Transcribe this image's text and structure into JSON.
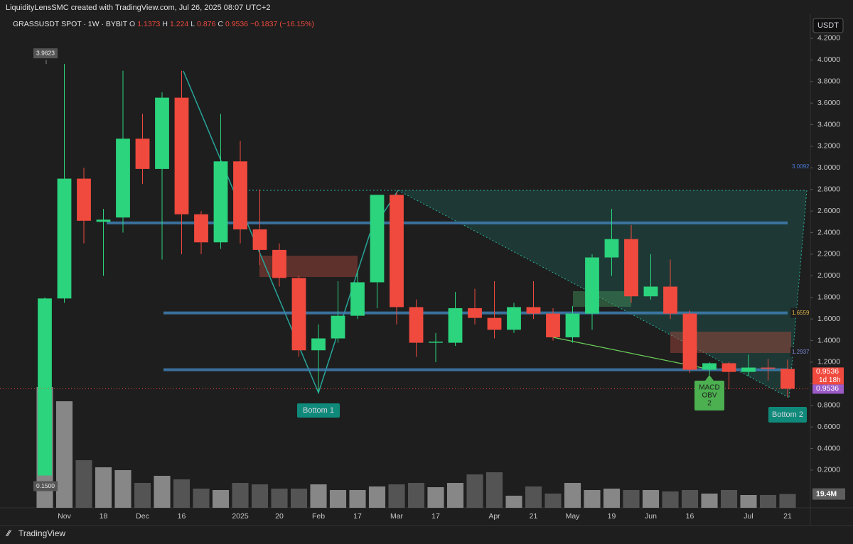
{
  "credit": "LiquidityLensSMC created with TradingView.com, Jul 26, 2025 08:07 UTC+2",
  "currency_button": "USDT",
  "footer_brand": "TradingView",
  "chart_data": {
    "type": "candlestick",
    "title": "GRASSUSDT SPOT · 1W · BYBIT",
    "header": {
      "o": "O",
      "h": "H",
      "l": "L",
      "c": "C",
      "change": "−0.1837 (−16.15%)"
    },
    "categories": [
      null,
      "Nov",
      null,
      "18",
      null,
      "Dec",
      null,
      "16",
      null,
      null,
      "2025",
      null,
      "20",
      null,
      "Feb",
      null,
      "17",
      null,
      "Mar",
      null,
      "17",
      null,
      null,
      "Apr",
      null,
      "21",
      null,
      "May",
      null,
      "19",
      null,
      "Jun",
      null,
      "16",
      null,
      null,
      "Jul",
      null,
      "21"
    ],
    "open": [
      0.15,
      1.79,
      2.9,
      2.5,
      2.54,
      3.27,
      2.99,
      3.65,
      2.57,
      2.31,
      3.06,
      2.43,
      2.24,
      1.98,
      1.31,
      1.42,
      1.63,
      1.94,
      2.75,
      1.71,
      1.38,
      1.38,
      1.7,
      1.61,
      1.5,
      1.71,
      1.65,
      1.43,
      1.65,
      2.17,
      2.34,
      1.81,
      1.9,
      1.65,
      1.13,
      1.19,
      1.11,
      1.15,
      1.1373
    ],
    "high": [
      1.8,
      3.9623,
      3.0,
      2.62,
      3.9,
      3.5,
      3.7,
      3.9,
      2.6,
      3.5,
      3.25,
      2.8,
      2.3,
      2.0,
      1.55,
      1.95,
      2.05,
      2.75,
      2.78,
      1.78,
      1.47,
      1.85,
      1.88,
      1.95,
      1.75,
      1.95,
      1.7,
      1.72,
      2.2,
      2.62,
      2.47,
      2.2,
      2.15,
      1.68,
      1.2,
      1.2,
      1.27,
      1.23,
      1.224
    ],
    "low": [
      0.15,
      1.75,
      2.3,
      2.0,
      2.4,
      2.85,
      2.15,
      2.2,
      2.2,
      2.25,
      2.3,
      2.1,
      1.9,
      1.25,
      0.92,
      1.38,
      1.6,
      1.7,
      1.55,
      1.25,
      1.2,
      1.35,
      1.55,
      1.42,
      1.47,
      1.6,
      1.4,
      1.38,
      1.5,
      2.0,
      1.75,
      1.78,
      1.6,
      1.1,
      1.07,
      0.95,
      1.07,
      1.03,
      0.876
    ],
    "close": [
      1.79,
      2.9,
      2.51,
      2.52,
      3.27,
      2.99,
      3.65,
      2.57,
      2.31,
      3.06,
      2.43,
      2.24,
      1.98,
      1.31,
      1.42,
      1.63,
      1.94,
      2.75,
      1.71,
      1.38,
      1.39,
      1.7,
      1.61,
      1.5,
      1.71,
      1.65,
      1.43,
      1.65,
      2.17,
      2.34,
      1.81,
      1.9,
      1.65,
      1.13,
      1.19,
      1.11,
      1.15,
      1.14,
      0.9536
    ],
    "up_color": "#2bd47d",
    "down_color": "#f04a3e",
    "volume": {
      "values": [
        170,
        150,
        67,
        57,
        53,
        35,
        45,
        40,
        27,
        25,
        35,
        33,
        27,
        27,
        33,
        25,
        25,
        30,
        33,
        35,
        29,
        35,
        47,
        50,
        17,
        30,
        20,
        35,
        25,
        27,
        25,
        25,
        23,
        25,
        20,
        25,
        18,
        18,
        19.4
      ],
      "label": "19.4M",
      "up_color": "#9a9a9a",
      "down_color": "#5e5e5e"
    },
    "ylim": [
      -0.149,
      4.259
    ],
    "yticks": [
      {
        "value": 0.2,
        "label": "0.2000"
      },
      {
        "value": 0.4,
        "label": "0.4000"
      },
      {
        "value": 0.6,
        "label": "0.6000"
      },
      {
        "value": 0.8,
        "label": "0.8000"
      },
      {
        "value": 1.0,
        "label": "1.0000"
      },
      {
        "value": 1.2,
        "label": "1.2000"
      },
      {
        "value": 1.4,
        "label": "1.4000"
      },
      {
        "value": 1.6,
        "label": "1.6000"
      },
      {
        "value": 1.8,
        "label": "1.8000"
      },
      {
        "value": 2.0,
        "label": "2.0000"
      },
      {
        "value": 2.2,
        "label": "2.2000"
      },
      {
        "value": 2.4,
        "label": "2.4000"
      },
      {
        "value": 2.6,
        "label": "2.6000"
      },
      {
        "value": 2.8,
        "label": "2.8000"
      },
      {
        "value": 3.0,
        "label": "3.0000"
      },
      {
        "value": 3.2,
        "label": "3.2000"
      },
      {
        "value": 3.4,
        "label": "3.4000"
      },
      {
        "value": 3.6,
        "label": "3.6000"
      },
      {
        "value": 3.8,
        "label": "3.8000"
      },
      {
        "value": 4.0,
        "label": "4.0000"
      },
      {
        "value": 4.2,
        "label": "4.2000"
      }
    ],
    "levels": [
      2.49,
      1.6559,
      1.13
    ],
    "level_color": "#3f7fb3",
    "axis_markers": [
      3.0092,
      1.2937
    ],
    "extremes": {
      "high": 3.9623,
      "low": {
        "value": 0.15,
        "label": "0.1500"
      }
    },
    "countdown": "1d 18h",
    "annotations": {
      "bottom_1": "Bottom 1",
      "bottom_2": "Bottom 2",
      "divergence": [
        "MACD",
        "OBV",
        "2"
      ]
    }
  }
}
